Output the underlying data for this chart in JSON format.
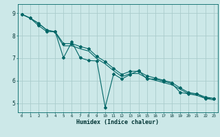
{
  "xlabel": "Humidex (Indice chaleur)",
  "bg_color": "#cce8e8",
  "grid_color": "#aacccc",
  "line_color": "#006666",
  "xlim": [
    -0.5,
    23.5
  ],
  "ylim": [
    4.6,
    9.4
  ],
  "xticks": [
    0,
    1,
    2,
    3,
    4,
    5,
    6,
    7,
    8,
    9,
    10,
    11,
    12,
    13,
    14,
    15,
    16,
    17,
    18,
    19,
    20,
    21,
    22,
    23
  ],
  "yticks": [
    5,
    6,
    7,
    8,
    9
  ],
  "series1_x": [
    0,
    1,
    2,
    3,
    4,
    5,
    6,
    7,
    8,
    9,
    10,
    11,
    12,
    13,
    14,
    15,
    16,
    17,
    18,
    19,
    20,
    21,
    22,
    23
  ],
  "series1_y": [
    8.95,
    8.78,
    8.45,
    8.18,
    8.18,
    7.02,
    7.72,
    7.02,
    6.9,
    6.88,
    4.82,
    6.3,
    6.08,
    6.28,
    6.45,
    6.08,
    6.08,
    5.98,
    5.88,
    5.48,
    5.42,
    5.42,
    5.22,
    5.22
  ],
  "series2_x": [
    0,
    1,
    2,
    3,
    4,
    5,
    6,
    7,
    8,
    9,
    10,
    11,
    12,
    13,
    14,
    15,
    16,
    17,
    18,
    19,
    20,
    21,
    22,
    23
  ],
  "series2_y": [
    8.95,
    8.78,
    8.55,
    8.25,
    8.18,
    7.65,
    7.65,
    7.52,
    7.42,
    7.08,
    6.85,
    6.55,
    6.28,
    6.42,
    6.42,
    6.22,
    6.12,
    6.02,
    5.92,
    5.68,
    5.48,
    5.42,
    5.28,
    5.22
  ],
  "series3_x": [
    0,
    1,
    2,
    3,
    4,
    5,
    6,
    7,
    8,
    9,
    10,
    11,
    12,
    13,
    14,
    15,
    16,
    17,
    18,
    19,
    20,
    21,
    22,
    23
  ],
  "series3_y": [
    8.95,
    8.78,
    8.55,
    8.25,
    8.15,
    7.55,
    7.55,
    7.42,
    7.32,
    6.98,
    6.75,
    6.45,
    6.18,
    6.32,
    6.32,
    6.12,
    6.02,
    5.92,
    5.82,
    5.62,
    5.42,
    5.35,
    5.22,
    5.15
  ]
}
